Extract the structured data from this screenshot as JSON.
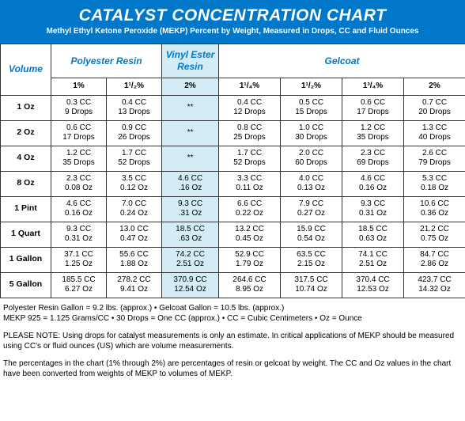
{
  "header": {
    "title": "CATALYST CONCENTRATION CHART",
    "subtitle": "Methyl Ethyl Ketone Peroxide (MEKP) Percent by Weight, Measured in Drops, CC and Fluid Ounces"
  },
  "group_headers": {
    "volume": "Volume",
    "polyester": "Polyester Resin",
    "vinyl": "Vinyl Ester Resin",
    "gelcoat": "Gelcoat"
  },
  "pct_headers": {
    "p1": "1%",
    "p15": "1¹/₂%",
    "p2v": "2%",
    "g114": "1¹/₄%",
    "g15": "1¹/₂%",
    "g134": "1³/₄%",
    "g2": "2%"
  },
  "rows": [
    {
      "vol": "1 Oz",
      "c": [
        "0.3 CC\n9 Drops",
        "0.4 CC\n13 Drops",
        "**",
        "0.4 CC\n12 Drops",
        "0.5 CC\n15 Drops",
        "0.6 CC\n17 Drops",
        "0.7 CC\n20 Drops"
      ]
    },
    {
      "vol": "2 Oz",
      "c": [
        "0.6 CC\n17 Drops",
        "0.9 CC\n26 Drops",
        "**",
        "0.8 CC\n25 Drops",
        "1.0 CC\n30 Drops",
        "1.2 CC\n35 Drops",
        "1.3 CC\n40 Drops"
      ]
    },
    {
      "vol": "4 Oz",
      "c": [
        "1.2 CC\n35 Drops",
        "1.7 CC\n52 Drops",
        "**",
        "1.7 CC\n52 Drops",
        "2.0 CC\n60 Drops",
        "2.3 CC\n69 Drops",
        "2.6 CC\n79 Drops"
      ]
    },
    {
      "vol": "8 Oz",
      "c": [
        "2.3 CC\n0.08 Oz",
        "3.5 CC\n0.12 Oz",
        "4.6 CC\n.16 Oz",
        "3.3 CC\n0.11 Oz",
        "4.0 CC\n0.13 Oz",
        "4.6 CC\n0.16 Oz",
        "5.3 CC\n0.18 Oz"
      ]
    },
    {
      "vol": "1 Pint",
      "c": [
        "4.6 CC\n0.16 Oz",
        "7.0 CC\n0.24 Oz",
        "9.3 CC\n.31 Oz",
        "6.6 CC\n0.22 Oz",
        "7.9 CC\n0.27 Oz",
        "9.3 CC\n0.31 Oz",
        "10.6 CC\n0.36 Oz"
      ]
    },
    {
      "vol": "1 Quart",
      "c": [
        "9.3 CC\n0.31 Oz",
        "13.0 CC\n0.47 Oz",
        "18.5 CC\n.63 Oz",
        "13.2 CC\n0.45 Oz",
        "15.9 CC\n0.54 Oz",
        "18.5 CC\n0.63 Oz",
        "21.2 CC\n0.75 Oz"
      ]
    },
    {
      "vol": "1 Gallon",
      "c": [
        "37.1 CC\n1.25 Oz",
        "55.6 CC\n1.88 Oz",
        "74.2 CC\n2.51 Oz",
        "52.9 CC\n1.79 Oz",
        "63.5 CC\n2.15 Oz",
        "74.1 CC\n2.51 Oz",
        "84.7 CC\n2.86 Oz"
      ]
    },
    {
      "vol": "5 Gallon",
      "c": [
        "185.5 CC\n6.27 Oz",
        "278.2 CC\n9.41 Oz",
        "370.9 CC\n12.54 Oz",
        "264.6 CC\n8.95 Oz",
        "317.5 CC\n10.74 Oz",
        "370.4 CC\n12.53 Oz",
        "423.7 CC\n14.32 Oz"
      ]
    }
  ],
  "footnotes": {
    "line1": "Polyester Resin Gallon = 9.2 lbs. (approx.)  •  Gelcoat Gallon = 10.5 lbs. (approx.)",
    "line2": "MEKP 925 = 1.125 Grams/CC  •  30 Drops = One CC (approx.)  •  CC = Cubic Centimeters  •  Oz = Ounce",
    "note1": "PLEASE NOTE: Using drops for catalyst measurements is only an estimate. In critical applications of MEKP should be measured using CC's or fluid ounces (US) which are volume measurements.",
    "note2": "The percentages in the chart (1% through 2%) are percentages of resin or gelcoat by weight. The CC and Oz values in the chart have been converted from weights of MEKP to volumes of MEKP."
  },
  "style": {
    "header_bg": "#0077c8",
    "highlight_bg": "#d3ecf6",
    "border_color": "#333",
    "header_font_size": 21,
    "sub_font_size": 10,
    "cell_font_size": 10
  }
}
